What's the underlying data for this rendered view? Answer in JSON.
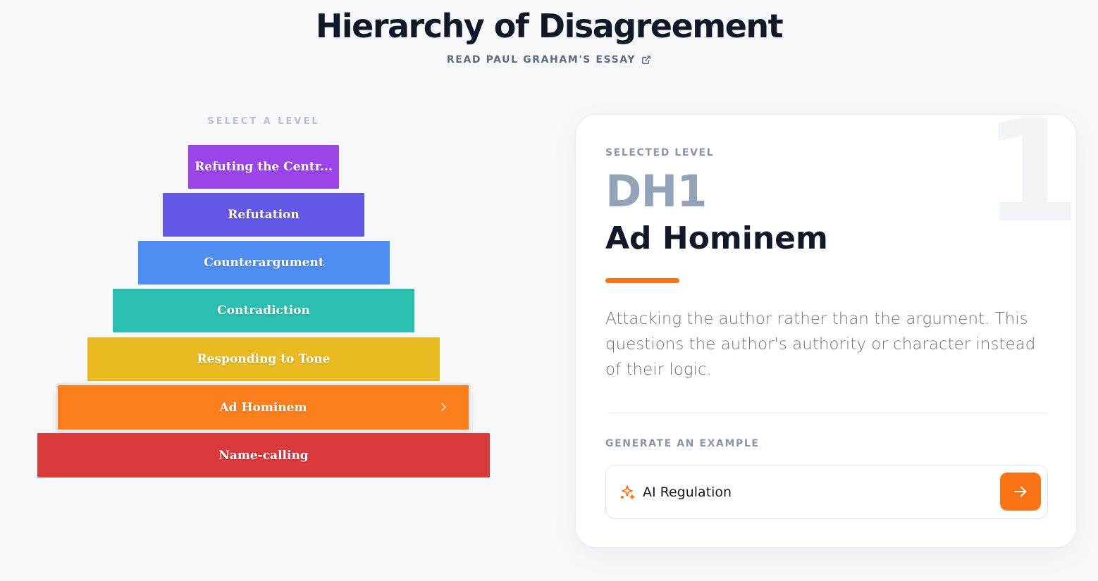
{
  "header": {
    "title": "Hierarchy of Disagreement",
    "essay_link": "READ PAUL GRAHAM'S ESSAY",
    "essay_link_icon": "external-link-icon"
  },
  "pyramid": {
    "select_label": "SELECT A LEVEL",
    "levels": [
      {
        "label": "Refuting the Centr...",
        "color": "#9b44e8"
      },
      {
        "label": "Refutation",
        "color": "#6357e6"
      },
      {
        "label": "Counterargument",
        "color": "#4e8ef2"
      },
      {
        "label": "Contradiction",
        "color": "#2bbfb0"
      },
      {
        "label": "Responding to Tone",
        "color": "#e9ba22"
      },
      {
        "label": "Ad Hominem",
        "color": "#fb7f1d",
        "selected": true,
        "icon": "chevron-right-icon"
      },
      {
        "label": "Name-calling",
        "color": "#db3a3c"
      }
    ]
  },
  "detail": {
    "background_number": "1",
    "selected_label": "SELECTED LEVEL",
    "code": "DH1",
    "name": "Ad Hominem",
    "accent_color": "#f97316",
    "description": "Attacking the author rather than the argument. This questions the author's authority or character instead of their logic.",
    "generate_label": "GENERATE AN EXAMPLE",
    "topic_value": "AI Regulation",
    "topic_icon": "sparkle-icon",
    "submit_icon": "arrow-right-icon"
  }
}
